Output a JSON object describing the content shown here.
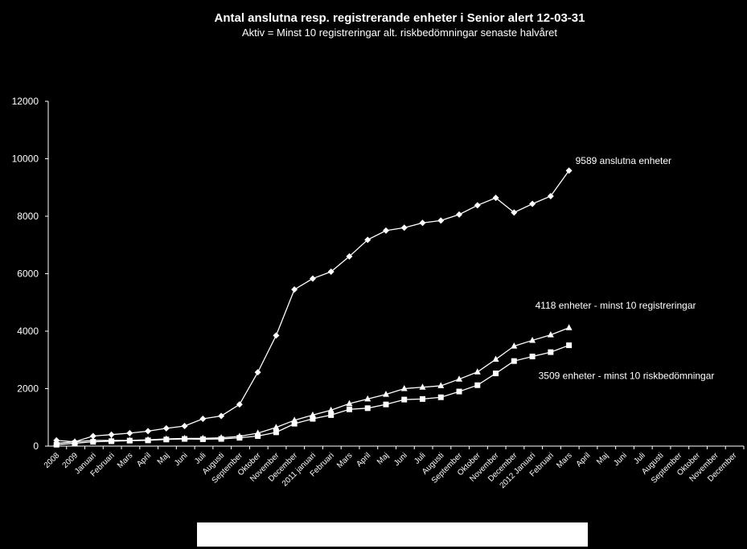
{
  "chart_data": {
    "type": "line",
    "title": "Antal anslutna resp. registrerande enheter i Senior alert 12-03-31",
    "subtitle": "Aktiv = Minst 10 registreringar alt. riskbedömningar senaste halvåret",
    "categories": [
      "2008",
      "2009",
      "Januari",
      "Februari",
      "Mars",
      "April",
      "Maj",
      "Juni",
      "Juli",
      "Augusti",
      "September",
      "Oktober",
      "November",
      "December",
      "2011 januari",
      "Februari",
      "Mars",
      "April",
      "Maj",
      "Juni",
      "Juli",
      "Augusti",
      "September",
      "Oktober",
      "November",
      "December",
      "2012 Januari",
      "Februari",
      "Mars",
      "April",
      "Maj",
      "Juni",
      "Juli",
      "Augusti",
      "September",
      "Oktober",
      "November",
      "December"
    ],
    "series": [
      {
        "name": "9589 anslutna enheter",
        "color": "#ffffff",
        "marker": "diamond",
        "values": [
          200,
          150,
          350,
          400,
          450,
          520,
          620,
          700,
          950,
          1050,
          1450,
          2570,
          3850,
          5450,
          5830,
          6070,
          6600,
          7180,
          7500,
          7600,
          7770,
          7850,
          8060,
          8380,
          8640,
          8130,
          8430,
          8700,
          9589,
          null,
          null,
          null,
          null,
          null,
          null,
          null,
          null,
          null
        ]
      },
      {
        "name": "4118 enheter - minst 10 registreringar",
        "color": "#ffffff",
        "marker": "triangle",
        "values": [
          100,
          150,
          200,
          200,
          200,
          220,
          250,
          270,
          270,
          290,
          340,
          450,
          650,
          900,
          1080,
          1250,
          1480,
          1640,
          1800,
          2000,
          2050,
          2100,
          2330,
          2580,
          3020,
          3480,
          3680,
          3870,
          4118,
          null,
          null,
          null,
          null,
          null,
          null,
          null,
          null,
          null
        ]
      },
      {
        "name": "3509 enheter - minst 10 riskbedömningar",
        "color": "#ffffff",
        "marker": "square",
        "values": [
          50,
          100,
          150,
          170,
          190,
          200,
          230,
          250,
          240,
          250,
          290,
          350,
          480,
          780,
          950,
          1080,
          1280,
          1320,
          1450,
          1620,
          1640,
          1700,
          1900,
          2120,
          2530,
          2960,
          3120,
          3270,
          3509,
          null,
          null,
          null,
          null,
          null,
          null,
          null,
          null,
          null
        ]
      }
    ],
    "ylim": [
      0,
      12000
    ],
    "yticks": [
      0,
      2000,
      4000,
      6000,
      8000,
      10000,
      12000
    ],
    "grid": false
  }
}
